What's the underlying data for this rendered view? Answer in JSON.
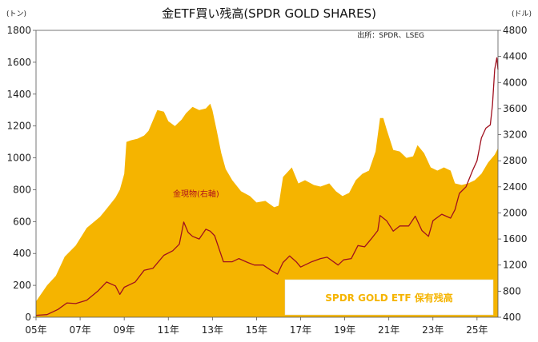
{
  "chart_data": {
    "type": "area",
    "title": "金ETF買い残高(SPDR GOLD SHARES)",
    "source": "出所：SPDR、LSEG",
    "left_axis_unit": "(トン)",
    "right_axis_unit": "(ドル)",
    "ylim_left": [
      0,
      1800
    ],
    "ylim_right": [
      400,
      4800
    ],
    "left_ticks": [
      "0",
      "200",
      "400",
      "600",
      "800",
      "1000",
      "1200",
      "1400",
      "1600",
      "1800"
    ],
    "right_ticks": [
      "400",
      "800",
      "1200",
      "1600",
      "2000",
      "2400",
      "2800",
      "3200",
      "3600",
      "4000",
      "4400",
      "4800"
    ],
    "x_ticks": [
      "05年",
      "07年",
      "09年",
      "11年",
      "13年",
      "15年",
      "17年",
      "19年",
      "21年",
      "23年",
      "25年"
    ],
    "xlim": [
      2005.0,
      2025.95
    ],
    "grid": false,
    "colors": {
      "holdings": "#f5b400",
      "price": "#a0101e"
    },
    "annotation": "金現物(右軸)",
    "legend": "SPDR GOLD ETF  保有残高",
    "series": [
      {
        "name": "SPDR GOLD ETF  保有残高",
        "axis": "left",
        "kind": "area",
        "x": [
          2005.0,
          2005.5,
          2005.9,
          2006.3,
          2006.8,
          2007.3,
          2007.9,
          2008.2,
          2008.6,
          2008.8,
          2009.0,
          2009.1,
          2009.3,
          2009.6,
          2009.9,
          2010.1,
          2010.5,
          2010.8,
          2011.0,
          2011.3,
          2011.6,
          2011.8,
          2012.1,
          2012.4,
          2012.7,
          2012.9,
          2013.0,
          2013.2,
          2013.4,
          2013.6,
          2013.9,
          2014.3,
          2014.7,
          2015.0,
          2015.4,
          2015.8,
          2016.0,
          2016.2,
          2016.6,
          2016.9,
          2017.2,
          2017.6,
          2017.9,
          2018.3,
          2018.6,
          2018.9,
          2019.2,
          2019.5,
          2019.8,
          2020.1,
          2020.4,
          2020.6,
          2020.75,
          2020.9,
          2021.2,
          2021.5,
          2021.8,
          2022.1,
          2022.3,
          2022.6,
          2022.9,
          2023.2,
          2023.5,
          2023.8,
          2024.0,
          2024.3,
          2024.6,
          2024.9,
          2025.2,
          2025.5,
          2025.8,
          2025.95
        ],
        "values": [
          100,
          200,
          260,
          380,
          450,
          560,
          630,
          680,
          750,
          800,
          900,
          1100,
          1110,
          1120,
          1140,
          1170,
          1300,
          1290,
          1230,
          1200,
          1240,
          1280,
          1320,
          1300,
          1310,
          1340,
          1300,
          1170,
          1030,
          930,
          860,
          790,
          760,
          720,
          730,
          690,
          700,
          880,
          940,
          840,
          860,
          830,
          820,
          840,
          790,
          760,
          780,
          860,
          900,
          920,
          1040,
          1250,
          1250,
          1180,
          1050,
          1040,
          1000,
          1010,
          1080,
          1030,
          940,
          920,
          940,
          920,
          840,
          830,
          840,
          860,
          900,
          970,
          1020,
          1060
        ]
      },
      {
        "name": "金現物(右軸)",
        "axis": "right",
        "kind": "line",
        "x": [
          2005.0,
          2005.5,
          2006.0,
          2006.4,
          2006.8,
          2007.3,
          2007.8,
          2008.2,
          2008.6,
          2008.8,
          2009.0,
          2009.5,
          2009.9,
          2010.3,
          2010.8,
          2011.2,
          2011.5,
          2011.7,
          2011.9,
          2012.1,
          2012.4,
          2012.7,
          2012.9,
          2013.1,
          2013.3,
          2013.5,
          2013.9,
          2014.2,
          2014.6,
          2014.9,
          2015.3,
          2015.7,
          2015.95,
          2016.2,
          2016.5,
          2016.8,
          2017.0,
          2017.5,
          2017.9,
          2018.2,
          2018.7,
          2018.95,
          2019.3,
          2019.6,
          2019.9,
          2020.2,
          2020.5,
          2020.6,
          2020.9,
          2021.2,
          2021.5,
          2021.9,
          2022.2,
          2022.5,
          2022.8,
          2023.0,
          2023.4,
          2023.8,
          2024.0,
          2024.2,
          2024.5,
          2024.8,
          2025.0,
          2025.2,
          2025.4,
          2025.6,
          2025.7,
          2025.8,
          2025.9,
          2025.95
        ],
        "values": [
          430,
          440,
          520,
          620,
          610,
          660,
          800,
          940,
          880,
          750,
          860,
          940,
          1120,
          1150,
          1350,
          1420,
          1520,
          1860,
          1700,
          1640,
          1600,
          1750,
          1720,
          1650,
          1450,
          1250,
          1250,
          1300,
          1240,
          1200,
          1200,
          1110,
          1060,
          1240,
          1340,
          1250,
          1170,
          1250,
          1300,
          1320,
          1200,
          1280,
          1300,
          1500,
          1480,
          1600,
          1730,
          1960,
          1880,
          1720,
          1800,
          1800,
          1950,
          1730,
          1640,
          1880,
          1980,
          1920,
          2050,
          2300,
          2400,
          2650,
          2800,
          3150,
          3300,
          3350,
          3650,
          4200,
          4380,
          4200
        ]
      }
    ]
  }
}
